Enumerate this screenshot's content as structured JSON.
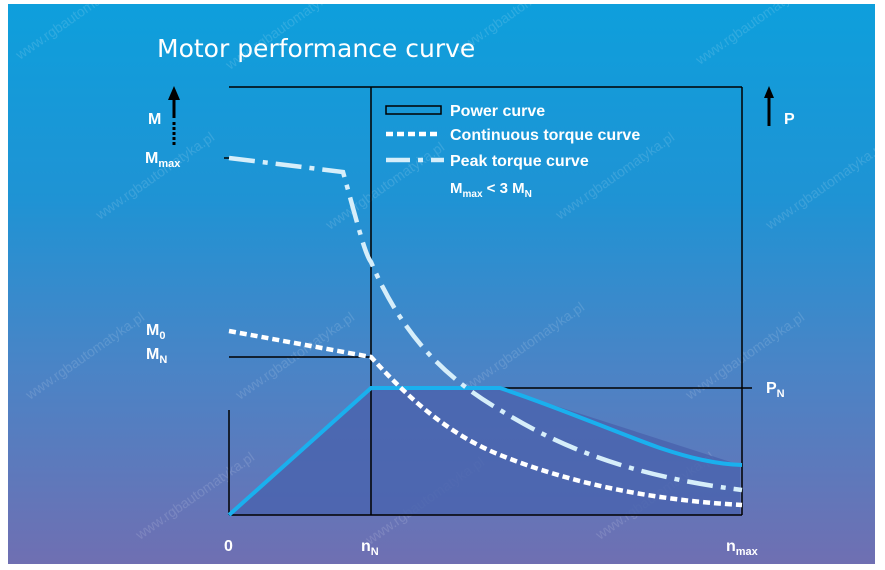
{
  "title": "Motor performance curve",
  "axes": {
    "y_left": {
      "main": "M",
      "max": "M",
      "max_sub": "max",
      "m0": "M",
      "m0_sub": "0",
      "mn": "M",
      "mn_sub": "N"
    },
    "y_right": {
      "main": "P",
      "pn": "P",
      "pn_sub": "N"
    },
    "x": {
      "origin": "0",
      "nn": "n",
      "nn_sub": "N",
      "nmax": "n",
      "nmax_sub": "max"
    }
  },
  "legend": {
    "power": "Power curve",
    "continuous": "Continuous torque curve",
    "peak": "Peak torque curve",
    "note": {
      "a": "M",
      "a_sub": "max",
      "mid": " < 3 M",
      "b_sub": "N"
    }
  },
  "watermark": "www.rgbautomatyka.pl",
  "colors": {
    "bg_top": "#0e9fdc",
    "bg_bottom": "#6f6fb2",
    "power_fill": "#4a64ae",
    "power_line": "#1ab0ee",
    "peak_curve": "#d6eefa",
    "continuous_curve": "#ffffff",
    "axes": "#000000"
  }
}
